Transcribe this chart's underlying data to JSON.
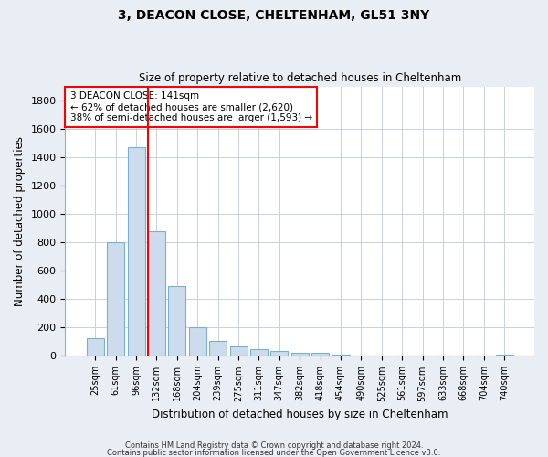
{
  "title1": "3, DEACON CLOSE, CHELTENHAM, GL51 3NY",
  "title2": "Size of property relative to detached houses in Cheltenham",
  "xlabel": "Distribution of detached houses by size in Cheltenham",
  "ylabel": "Number of detached properties",
  "categories": [
    "25sqm",
    "61sqm",
    "96sqm",
    "132sqm",
    "168sqm",
    "204sqm",
    "239sqm",
    "275sqm",
    "311sqm",
    "347sqm",
    "382sqm",
    "418sqm",
    "454sqm",
    "490sqm",
    "525sqm",
    "561sqm",
    "597sqm",
    "633sqm",
    "668sqm",
    "704sqm",
    "740sqm"
  ],
  "values": [
    125,
    800,
    1470,
    880,
    490,
    205,
    105,
    65,
    45,
    35,
    25,
    22,
    10,
    0,
    0,
    0,
    0,
    0,
    0,
    0,
    10
  ],
  "bar_color": "#ccdcec",
  "bar_edge_color": "#7aafd4",
  "annotation_title": "3 DEACON CLOSE: 141sqm",
  "annotation_line1": "← 62% of detached houses are smaller (2,620)",
  "annotation_line2": "38% of semi-detached houses are larger (1,593) →",
  "ylim": [
    0,
    1900
  ],
  "yticks": [
    0,
    200,
    400,
    600,
    800,
    1000,
    1200,
    1400,
    1600,
    1800
  ],
  "footer1": "Contains HM Land Registry data © Crown copyright and database right 2024.",
  "footer2": "Contains public sector information licensed under the Open Government Licence v3.0.",
  "bg_color": "#e8eef4",
  "plot_bg_color": "#ffffff",
  "grid_color": "#c8d0d8"
}
